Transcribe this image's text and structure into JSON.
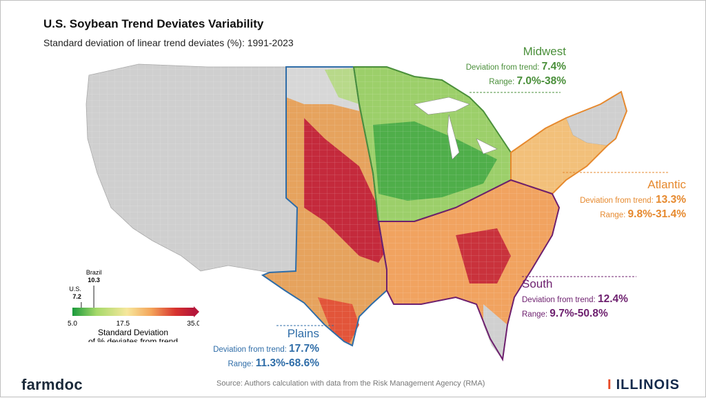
{
  "title": "U.S. Soybean Trend Deviates Variability",
  "subtitle": "Standard deviation of linear trend deviates (%): 1991-2023",
  "regions": {
    "midwest": {
      "name": "Midwest",
      "deviation_label": "Deviation from trend:",
      "deviation": "7.4%",
      "range_label": "Range:",
      "range": "7.0%-38%",
      "color": "#4a8f3a"
    },
    "atlantic": {
      "name": "Atlantic",
      "deviation_label": "Deviation from trend:",
      "deviation": "13.3%",
      "range_label": "Range:",
      "range": "9.8%-31.4%",
      "color": "#e6892e"
    },
    "south": {
      "name": "South",
      "deviation_label": "Deviation from trend:",
      "deviation": "12.4%",
      "range_label": "Range:",
      "range": "9.7%-50.8%",
      "color": "#6d1f6e"
    },
    "plains": {
      "name": "Plains",
      "deviation_label": "Deviation from trend:",
      "deviation": "17.7%",
      "range_label": "Range:",
      "range": "11.3%-68.6%",
      "color": "#2f6da8"
    }
  },
  "legend": {
    "title_line1": "Standard Deviation",
    "title_line2": "of % deviates from trend",
    "min": 5.0,
    "mid": 17.5,
    "max": 35.0,
    "tick_min": "5.0",
    "tick_mid": "17.5",
    "tick_max": "35.0",
    "markers": [
      {
        "name": "U.S.",
        "value": 7.2,
        "value_label": "7.2"
      },
      {
        "name": "Brazil",
        "value": 10.3,
        "value_label": "10.3"
      }
    ],
    "colors": [
      "#1a9a3c",
      "#a6d96a",
      "#f6e79c",
      "#f4a45a",
      "#d7332f",
      "#b5163a"
    ]
  },
  "source": "Source: Authors calculation with data from the Risk Management Agency (RMA)",
  "branding": {
    "left": "farmdoc",
    "right": "ILLINOIS"
  }
}
